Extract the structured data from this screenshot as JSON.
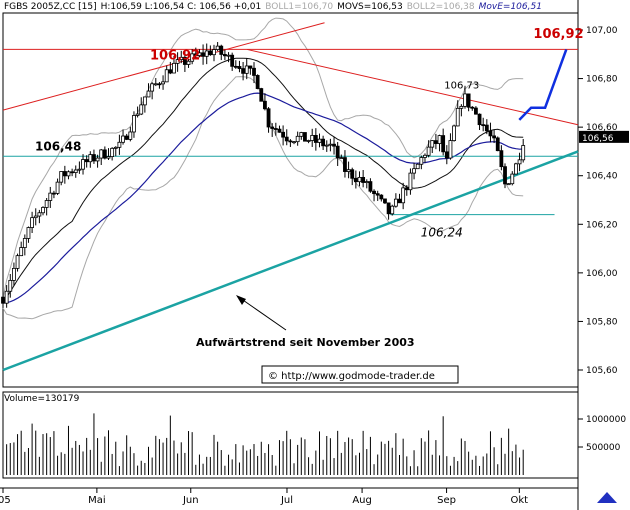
{
  "header": {
    "symbol": "FGBS 2005Z,CC [15]",
    "ohlc": "H:106,59 L:106,54 C: 106,56 +0,01",
    "boll1": "BOLL1=106,70",
    "movs": "MOVS=106,53",
    "boll2": "BOLL2=106,38",
    "move": "MovE=106,51"
  },
  "colors": {
    "price": "#000000",
    "boll": "#a8a8a8",
    "movs": "#111111",
    "move": "#1c1c9c",
    "resistance": "#dd2020",
    "support": "#1ba3a3",
    "forecast": "#1030e0",
    "highlight": "#cc0000"
  },
  "chart_data": {
    "type": "candlestick",
    "instrument": "FGBS 2005Z,CC [15]",
    "x_ticks": [
      "'05",
      "Mai",
      "Jun",
      "Jul",
      "Aug",
      "Sep",
      "Okt"
    ],
    "x_ticks_day": [
      0,
      40,
      80,
      121,
      153,
      189,
      220
    ],
    "y_ticks": [
      "107,00",
      "106,80",
      "106,60",
      "106,40",
      "106,20",
      "106,00",
      "105,80",
      "105,60"
    ],
    "y_tick_values": [
      107.0,
      106.8,
      106.6,
      106.4,
      106.2,
      106.0,
      105.8,
      105.6
    ],
    "ylim": [
      105.53,
      107.07
    ],
    "last_price_label": "106,56",
    "last_price": 106.56,
    "volume_label": "Volume=130179",
    "volume_ticks": [
      "1000000",
      "500000"
    ],
    "volume_tick_values": [
      1000000,
      500000
    ],
    "volume_max": 1250000,
    "annotations": {
      "high_left": "106,92",
      "target": "106,92",
      "high_sep": "106,73",
      "low_aug": "106,24",
      "level_left": "106,48",
      "trend_text": "Aufwärtstrend seit November 2003",
      "copyright": "© http://www.godmode-trader.de"
    },
    "levels": {
      "horizontal_high": 106.92,
      "horizontal_mid": 106.48,
      "low_support": 106.24
    },
    "lines": {
      "up_channel": [
        [
          0,
          106.67
        ],
        [
          137,
          107.03
        ]
      ],
      "down_trend": [
        [
          104,
          106.92
        ],
        [
          245,
          106.61
        ]
      ],
      "long_uptrend": [
        [
          0,
          105.6
        ],
        [
          245,
          106.5
        ]
      ],
      "low_line": [
        [
          165,
          106.24
        ],
        [
          235,
          106.24
        ]
      ],
      "target_path": [
        [
          220,
          106.63
        ],
        [
          225,
          106.68
        ],
        [
          231,
          106.68
        ],
        [
          240,
          106.92
        ]
      ]
    },
    "series": [
      {
        "name": "FGBS",
        "seed": 7,
        "start_day": 0,
        "days": [
          0,
          200
        ],
        "anchors": [
          [
            0,
            105.9
          ],
          [
            12,
            106.2
          ],
          [
            25,
            106.4
          ],
          [
            40,
            106.48
          ],
          [
            50,
            106.52
          ],
          [
            60,
            106.72
          ],
          [
            72,
            106.85
          ],
          [
            80,
            106.88
          ],
          [
            90,
            106.92
          ],
          [
            100,
            106.86
          ],
          [
            108,
            106.8
          ],
          [
            113,
            106.62
          ],
          [
            121,
            106.56
          ],
          [
            130,
            106.55
          ],
          [
            140,
            106.52
          ],
          [
            146,
            106.42
          ],
          [
            153,
            106.38
          ],
          [
            160,
            106.3
          ],
          [
            165,
            106.24
          ],
          [
            172,
            106.36
          ],
          [
            180,
            106.5
          ],
          [
            186,
            106.55
          ],
          [
            189,
            106.45
          ],
          [
            193,
            106.63
          ],
          [
            196,
            106.73
          ],
          [
            204,
            106.62
          ],
          [
            210,
            106.52
          ],
          [
            214,
            106.36
          ],
          [
            219,
            106.45
          ],
          [
            222,
            106.56
          ]
        ]
      }
    ]
  }
}
